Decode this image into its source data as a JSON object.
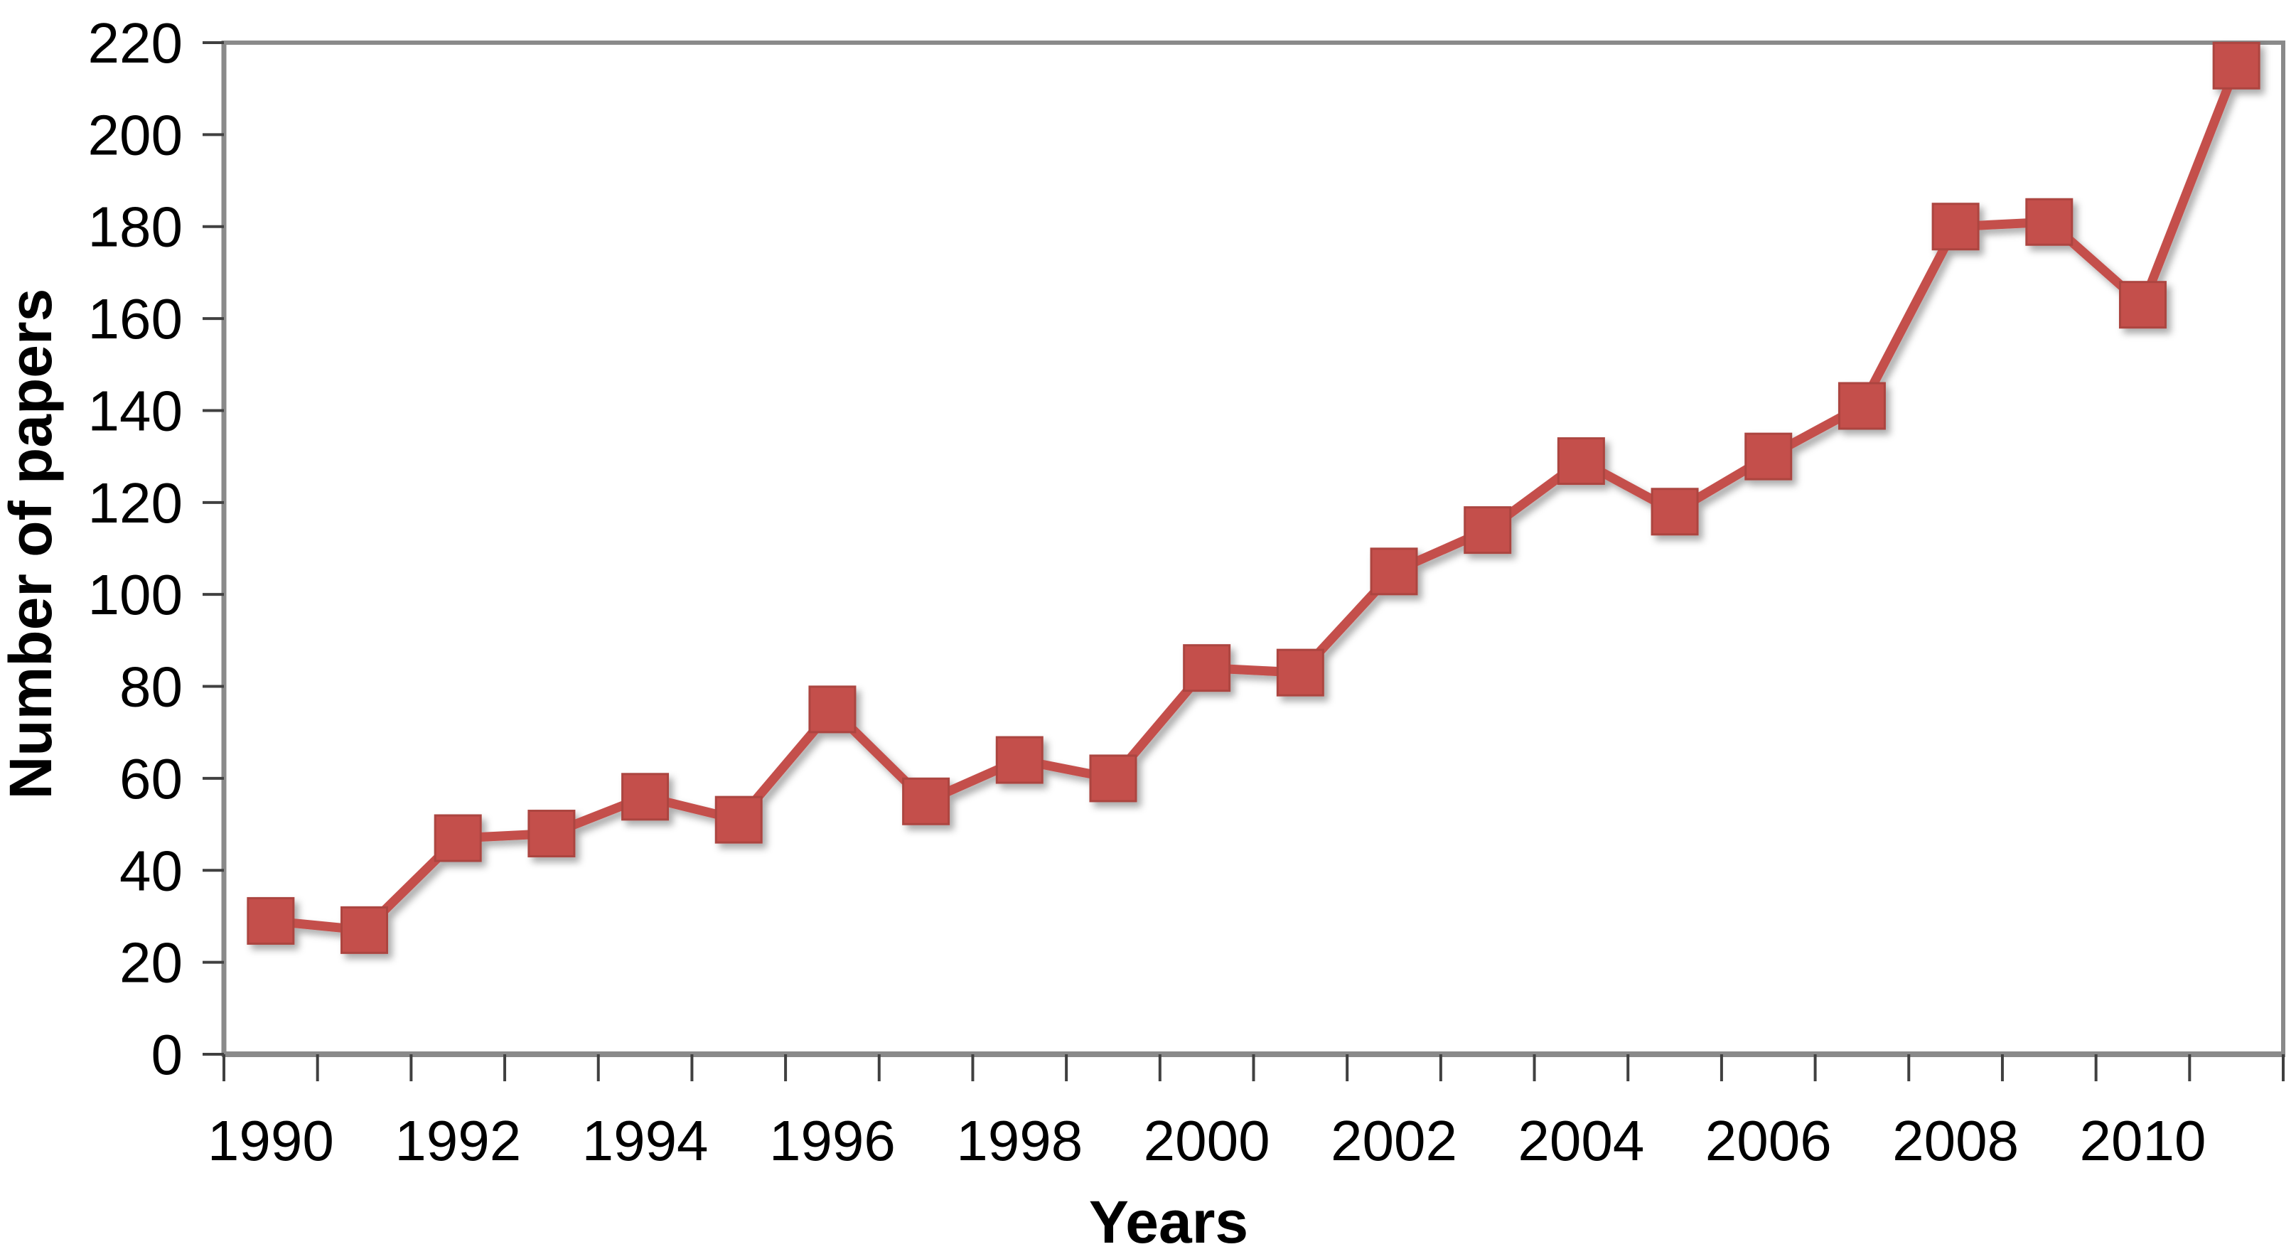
{
  "chart_data": {
    "type": "line",
    "title": "",
    "xlabel": "Years",
    "ylabel": "Number of papers",
    "categories": [
      "1990",
      "1991",
      "1992",
      "1993",
      "1994",
      "1995",
      "1996",
      "1997",
      "1998",
      "1999",
      "2000",
      "2001",
      "2002",
      "2003",
      "2004",
      "2005",
      "2006",
      "2007",
      "2008",
      "2009",
      "2010",
      "2011"
    ],
    "series": [
      {
        "name": "Number of papers",
        "values": [
          29,
          27,
          47,
          48,
          56,
          51,
          75,
          55,
          64,
          60,
          84,
          83,
          105,
          114,
          129,
          118,
          130,
          141,
          180,
          181,
          163,
          215
        ]
      }
    ],
    "ylim": [
      0,
      220
    ],
    "ytick_step": 20,
    "ytick_labels": [
      "0",
      "20",
      "40",
      "60",
      "80",
      "100",
      "120",
      "140",
      "160",
      "180",
      "200",
      "220"
    ],
    "xtick_label_every": 2,
    "xtick_labels_shown": [
      "1990",
      "1992",
      "1994",
      "1996",
      "1998",
      "2000",
      "2002",
      "2004",
      "2006",
      "2008",
      "2010"
    ],
    "grid": false,
    "legend_position": "none",
    "marker": "square",
    "colors": {
      "series_fill": "#C4504C",
      "series_stroke": "#AC4440",
      "frame": "#8A8A8A",
      "tick": "#404040",
      "text": "#000000",
      "background": "#FFFFFF"
    }
  }
}
